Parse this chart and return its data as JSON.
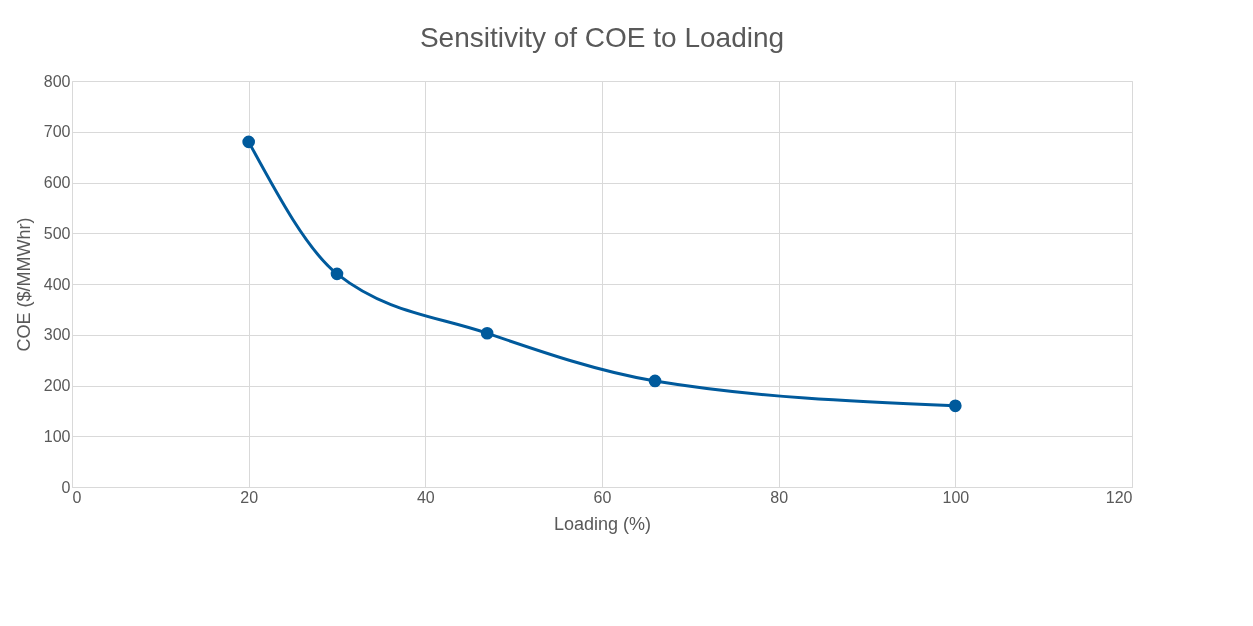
{
  "chart_data": {
    "type": "line",
    "title": "Sensitivity of COE to Loading",
    "xlabel": "Loading (%)",
    "ylabel": "COE ($/MMWhr)",
    "x": [
      20,
      30,
      47,
      66,
      100
    ],
    "series": [
      {
        "color": "#005a9c",
        "values": [
          680,
          420,
          303,
          209,
          160
        ]
      }
    ],
    "xlim": [
      0,
      120
    ],
    "xticks": [
      0,
      20,
      40,
      60,
      80,
      100,
      120
    ],
    "ylim": [
      0,
      800
    ],
    "yticks": [
      0,
      100,
      200,
      300,
      400,
      500,
      600,
      700,
      800
    ],
    "grid": true,
    "marker": "circle",
    "line_style": "solid"
  }
}
